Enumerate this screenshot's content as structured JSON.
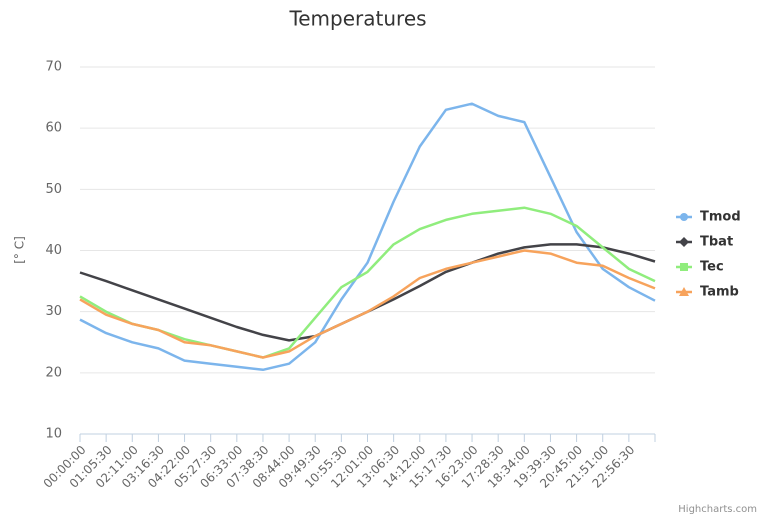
{
  "chart_data": {
    "type": "line",
    "title": "Temperatures",
    "y_label": "[° C]",
    "credits": "Highcharts.com",
    "categories": [
      "00:00:00",
      "01:05:30",
      "02:11:00",
      "03:16:30",
      "04:22:00",
      "05:27:30",
      "06:33:00",
      "07:38:30",
      "08:44:00",
      "09:49:30",
      "10:55:30",
      "12:01:00",
      "13:06:30",
      "14:12:00",
      "15:17:30",
      "16:23:00",
      "17:28:30",
      "18:34:00",
      "19:39:30",
      "20:45:00",
      "21:51:00",
      "22:56:30",
      null
    ],
    "series": [
      {
        "name": "Tmod",
        "color": "#7cb5ec",
        "marker": "circle",
        "values": [
          28.7,
          26.5,
          25,
          24,
          22,
          21.5,
          21,
          20.5,
          21.5,
          25,
          32,
          38,
          48,
          57,
          63,
          64,
          62,
          61,
          52,
          43,
          37,
          34,
          31.8
        ]
      },
      {
        "name": "Tbat",
        "color": "#434348",
        "marker": "diamond",
        "values": [
          36.4,
          35,
          33.5,
          32,
          30.5,
          29,
          27.5,
          26.2,
          25.3,
          26,
          28,
          30,
          32,
          34.2,
          36.5,
          38,
          39.5,
          40.5,
          41,
          41,
          40.5,
          39.5,
          38.2
        ]
      },
      {
        "name": "Tec",
        "color": "#90ed7d",
        "marker": "square",
        "values": [
          32.5,
          30,
          28,
          27,
          25.5,
          24.5,
          23.5,
          22.5,
          24,
          29,
          34,
          36.5,
          41,
          43.5,
          45,
          46,
          46.5,
          47,
          46,
          44,
          40.5,
          37,
          35
        ]
      },
      {
        "name": "Tamb",
        "color": "#f7a35c",
        "marker": "triangle",
        "values": [
          32,
          29.5,
          28,
          27,
          25,
          24.5,
          23.5,
          22.5,
          23.5,
          26,
          28,
          30,
          32.5,
          35.5,
          37,
          38,
          39,
          40,
          39.5,
          38,
          37.5,
          35.5,
          33.8
        ]
      }
    ],
    "ylim": [
      10,
      70
    ],
    "yticks": [
      10,
      20,
      30,
      40,
      50,
      60,
      70
    ],
    "grid": true,
    "legend": "right"
  }
}
